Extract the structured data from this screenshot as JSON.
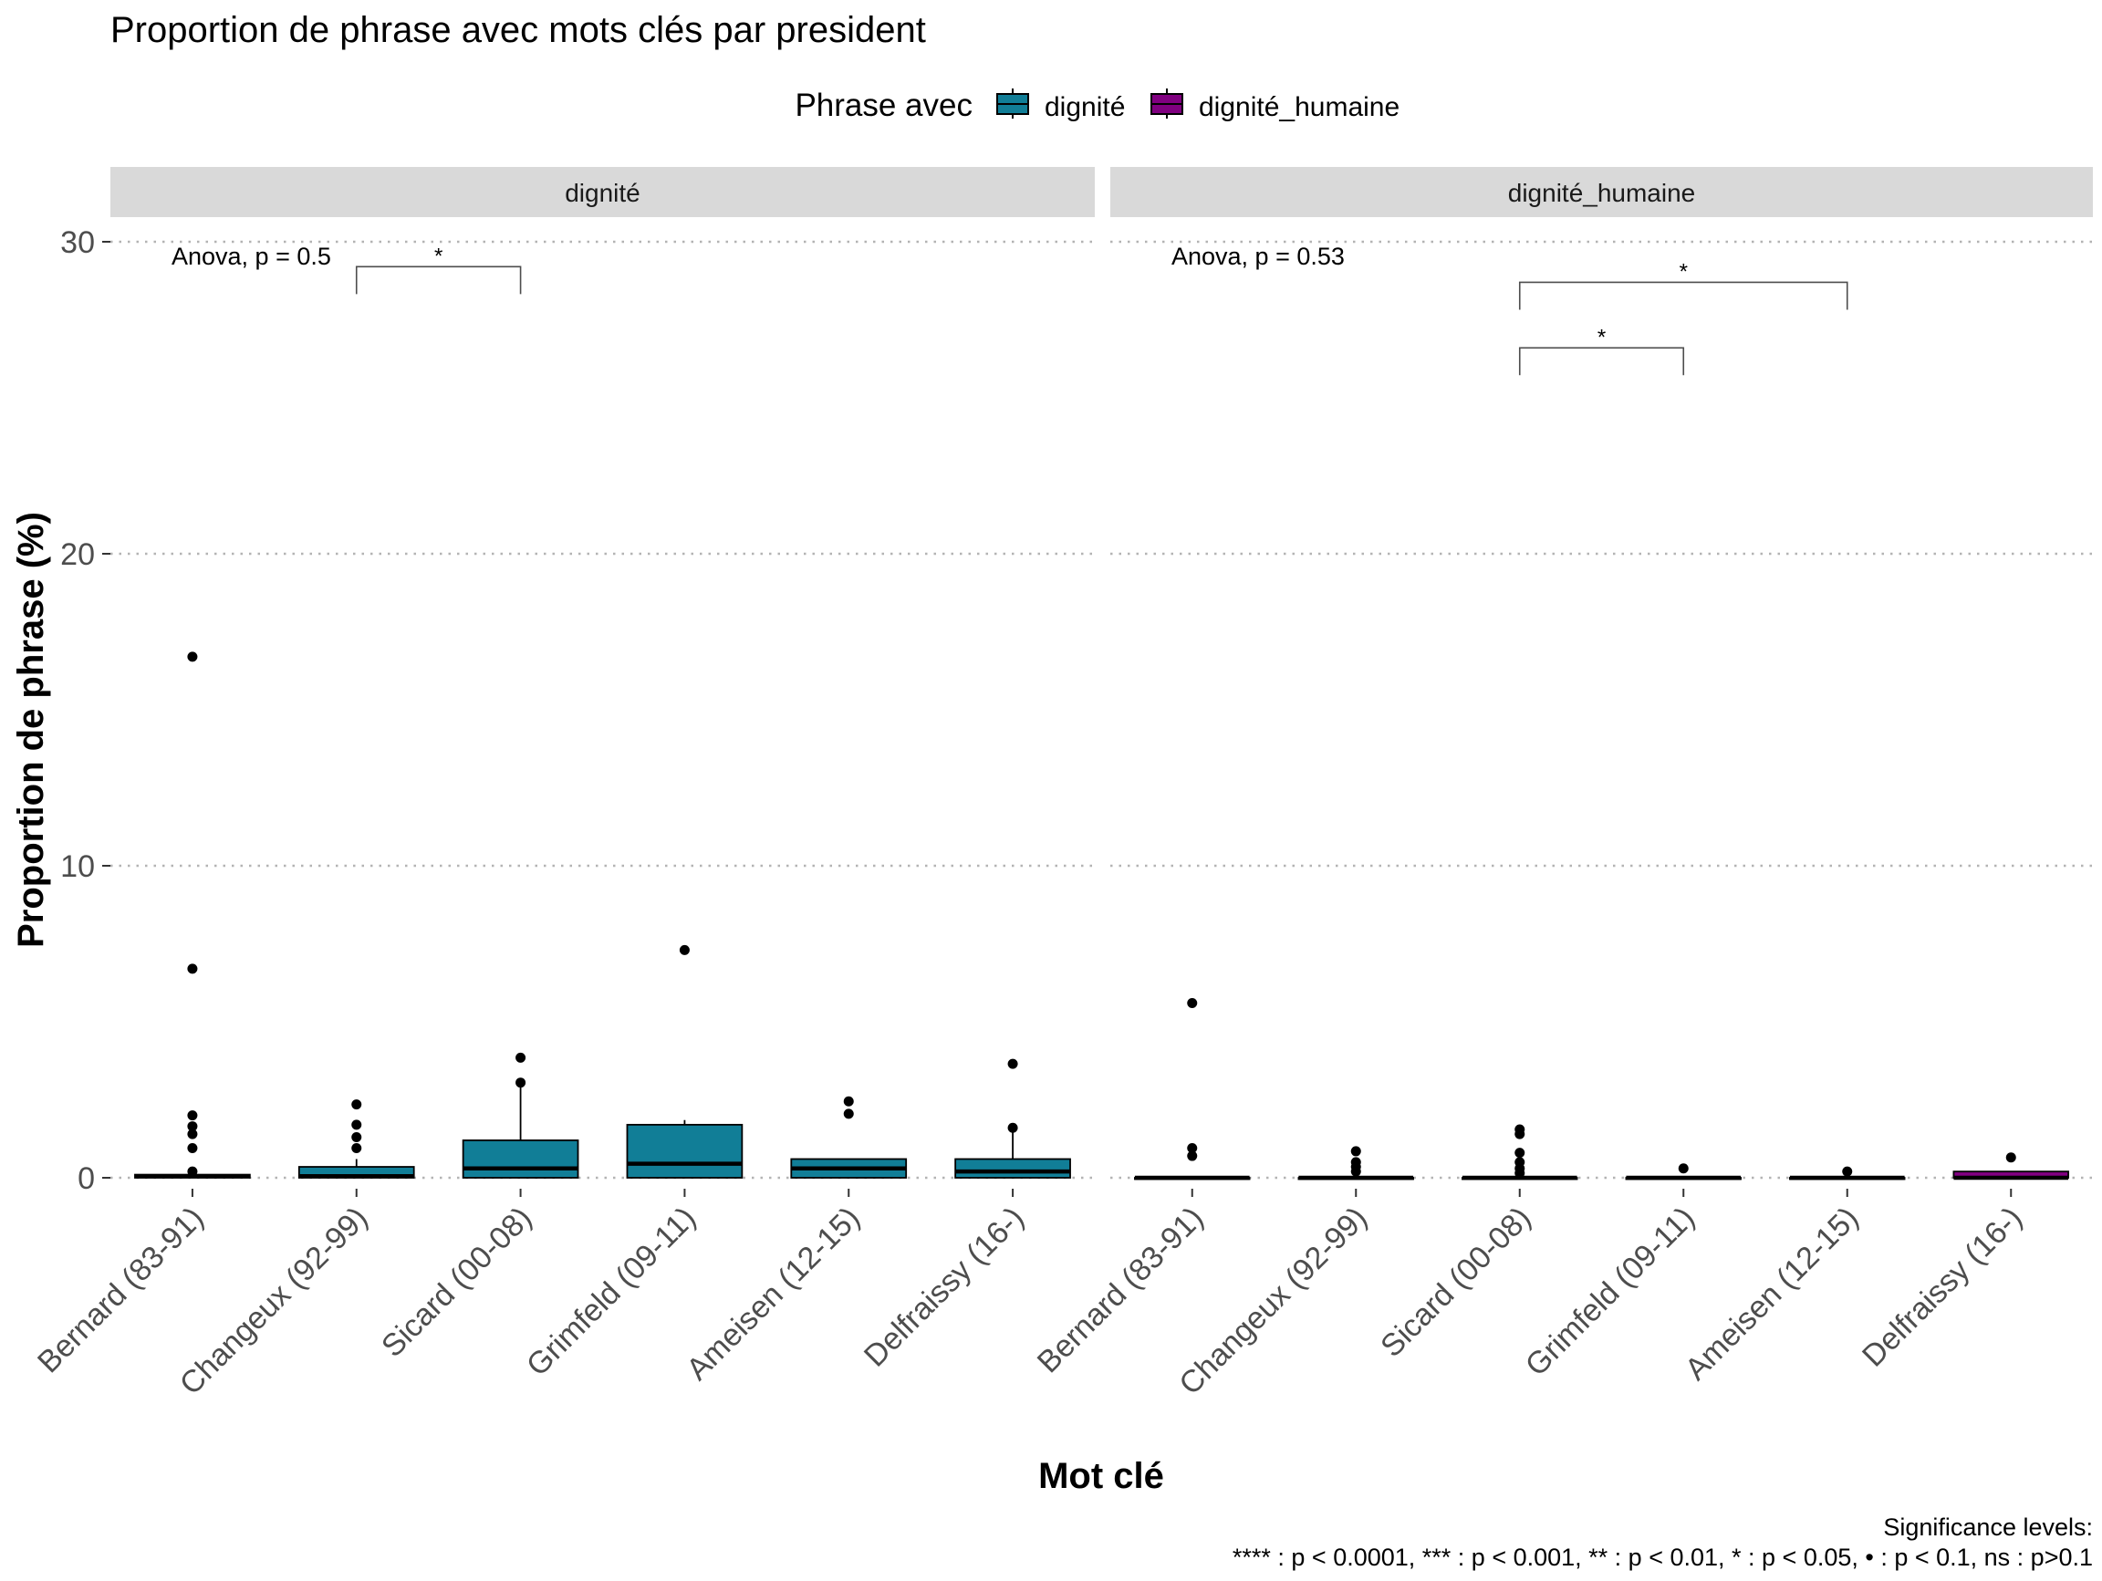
{
  "chart_data": {
    "type": "boxplot",
    "title": "Proportion de phrase avec mots clés par president",
    "xlabel": "Mot clé",
    "ylabel": "Proportion de phrase (%)",
    "ylim": [
      0,
      30
    ],
    "yticks": [
      0,
      10,
      20,
      30
    ],
    "grid": "horizontal dotted",
    "legend": {
      "title": "Phrase avec",
      "position": "top",
      "items": [
        {
          "label": "dignité",
          "color": "#117E97"
        },
        {
          "label": "dignité_humaine",
          "color": "#800080"
        }
      ]
    },
    "categories": [
      "Bernard (83-91)",
      "Changeux (92-99)",
      "Sicard (00-08)",
      "Grimfeld (09-11)",
      "Ameisen (12-15)",
      "Delfraissy (16-)"
    ],
    "facets": [
      {
        "name": "dignité",
        "color": "#117E97",
        "anova_label": "Anova, p = 0.5",
        "brackets": [
          {
            "from": "Changeux (92-99)",
            "to": "Sicard (00-08)",
            "y": 29.2,
            "label": "*"
          }
        ],
        "boxes": [
          {
            "q1": 0,
            "median": 0.05,
            "q3": 0.1,
            "whisker_low": 0,
            "whisker_high": 0.1,
            "outliers": [
              0.2,
              0.95,
              1.4,
              1.65,
              2.0,
              6.7,
              16.7
            ]
          },
          {
            "q1": 0,
            "median": 0.05,
            "q3": 0.35,
            "whisker_low": 0,
            "whisker_high": 0.6,
            "outliers": [
              0.95,
              1.3,
              1.7,
              2.35
            ]
          },
          {
            "q1": 0,
            "median": 0.3,
            "q3": 1.2,
            "whisker_low": 0,
            "whisker_high": 2.9,
            "outliers": [
              3.05,
              3.85
            ]
          },
          {
            "q1": 0,
            "median": 0.45,
            "q3": 1.7,
            "whisker_low": 0,
            "whisker_high": 1.85,
            "outliers": [
              7.3
            ]
          },
          {
            "q1": 0,
            "median": 0.3,
            "q3": 0.6,
            "whisker_low": 0,
            "whisker_high": 0.6,
            "outliers": [
              2.05,
              2.45
            ]
          },
          {
            "q1": 0,
            "median": 0.2,
            "q3": 0.6,
            "whisker_low": 0,
            "whisker_high": 1.5,
            "outliers": [
              1.6,
              3.65
            ]
          }
        ]
      },
      {
        "name": "dignité_humaine",
        "color": "#800080",
        "anova_label": "Anova, p = 0.53",
        "brackets": [
          {
            "from": "Sicard (00-08)",
            "to": "Ameisen (12-15)",
            "y": 28.7,
            "label": "*"
          },
          {
            "from": "Sicard (00-08)",
            "to": "Grimfeld (09-11)",
            "y": 26.6,
            "label": "*"
          }
        ],
        "boxes": [
          {
            "q1": 0,
            "median": 0,
            "q3": 0,
            "whisker_low": 0,
            "whisker_high": 0,
            "outliers": [
              0.7,
              0.95,
              5.6
            ]
          },
          {
            "q1": 0,
            "median": 0,
            "q3": 0,
            "whisker_low": 0,
            "whisker_high": 0,
            "outliers": [
              0.2,
              0.35,
              0.5,
              0.85
            ]
          },
          {
            "q1": 0,
            "median": 0,
            "q3": 0,
            "whisker_low": 0,
            "whisker_high": 0,
            "outliers": [
              0.15,
              0.3,
              0.5,
              0.8,
              1.4,
              1.55
            ]
          },
          {
            "q1": 0,
            "median": 0,
            "q3": 0,
            "whisker_low": 0,
            "whisker_high": 0,
            "outliers": [
              0.3
            ]
          },
          {
            "q1": 0,
            "median": 0,
            "q3": 0,
            "whisker_low": 0,
            "whisker_high": 0,
            "outliers": [
              0.2
            ]
          },
          {
            "q1": 0,
            "median": 0,
            "q3": 0.2,
            "whisker_low": 0,
            "whisker_high": 0.2,
            "outliers": [
              0.65
            ]
          }
        ]
      }
    ],
    "caption": [
      "Significance levels:",
      "**** : p < 0.0001, *** : p < 0.001, ** : p < 0.01, * : p < 0.05, • : p < 0.1, ns : p>0.1"
    ]
  }
}
